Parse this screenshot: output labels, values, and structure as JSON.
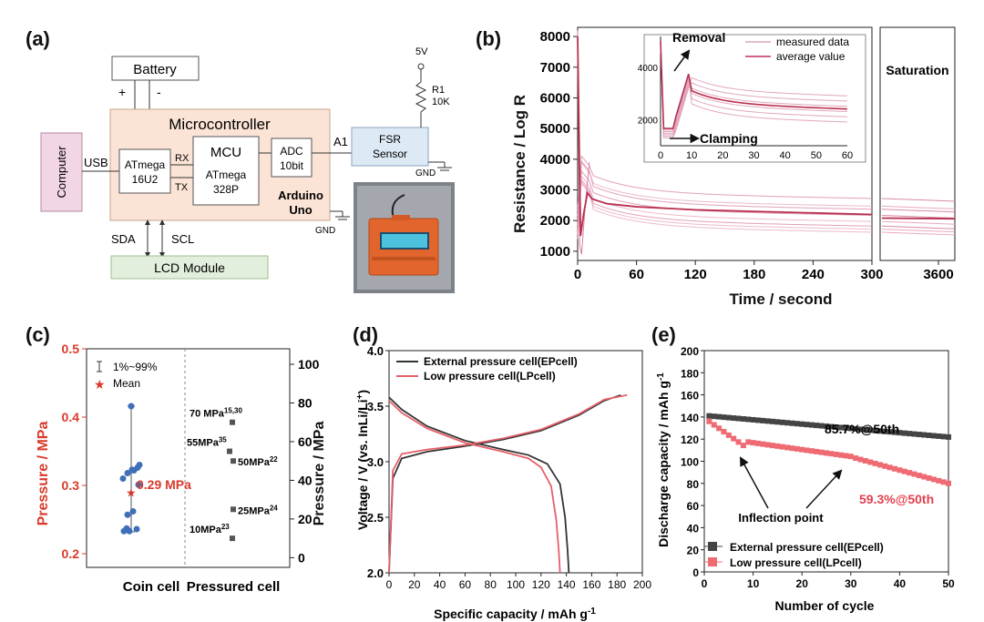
{
  "panels": {
    "a": {
      "label": "(a)",
      "battery": "Battery",
      "plus": "+",
      "minus": "-",
      "microcontroller": "Microcontroller",
      "computer": "Computer",
      "usb": "USB",
      "atmega16_l1": "ATmega",
      "atmega16_l2": "16U2",
      "rx": "RX",
      "tx": "TX",
      "mcu": "MCU",
      "atmega328_l1": "ATmega",
      "atmega328_l2": "328P",
      "adc_l1": "ADC",
      "adc_l2": "10bit",
      "arduino_l1": "Arduino",
      "arduino_l2": "Uno",
      "a1": "A1",
      "fsr_l1": "FSR",
      "fsr_l2": "Sensor",
      "v5": "5V",
      "r1": "R1",
      "r1_val": "10K",
      "gnd": "GND",
      "sda": "SDA",
      "scl": "SCL",
      "lcd": "LCD Module"
    },
    "b": {
      "label": "(b)",
      "inset_legend": [
        "measured data",
        "average value"
      ],
      "removal": "Removal",
      "clamping": "Clamping",
      "saturation": "Saturation"
    },
    "c": {
      "label": "(c)",
      "legend_range": "1%~99%",
      "legend_mean": "Mean",
      "mean_label": "0.29 MPa",
      "pressured": [
        {
          "label": "70 MPa",
          "ref": "15,30",
          "value": 70
        },
        {
          "label": "55MPa",
          "ref": "35",
          "value": 55
        },
        {
          "label": "50MPa",
          "ref": "22",
          "value": 50
        },
        {
          "label": "25MPa",
          "ref": "24",
          "value": 25
        },
        {
          "label": "10MPa",
          "ref": "23",
          "value": 10
        }
      ]
    },
    "d": {
      "label": "(d)"
    },
    "e": {
      "label": "(e)",
      "ep_annot": "85.7%@50th",
      "lp_annot": "59.3%@50th",
      "inflection": "Inflection point"
    }
  },
  "chart_data": [
    {
      "type": "line",
      "panel": "b",
      "xlabel": "Time / second",
      "ylabel": "Resistance / Log R",
      "xticks": [
        "0",
        "60",
        "120",
        "180",
        "240",
        "300",
        "3600"
      ],
      "ylim": [
        700,
        8300
      ],
      "yticks": [
        1000,
        2000,
        3000,
        4000,
        5000,
        6000,
        7000,
        8000
      ],
      "series": [
        {
          "name": "average value",
          "x": [
            0,
            3,
            6,
            10,
            15,
            30,
            60,
            120,
            180,
            240,
            300
          ],
          "y": [
            8000,
            1500,
            2200,
            2900,
            2700,
            2550,
            2450,
            2350,
            2300,
            2250,
            2200
          ]
        }
      ],
      "inset": {
        "xticks": [
          0,
          10,
          20,
          30,
          40,
          50,
          60
        ],
        "yticks": [
          2000,
          4000
        ],
        "legend": [
          "measured data",
          "average value"
        ]
      }
    },
    {
      "type": "scatter",
      "panel": "c",
      "ylabel": "Pressure / MPa",
      "ylabel_right": "Pressure / MPa",
      "categories": [
        "Coin cell",
        "Pressured cell"
      ],
      "ylim": [
        0.18,
        0.5
      ],
      "yticks": [
        0.2,
        0.3,
        0.4,
        0.5
      ],
      "ylim_right": [
        -5,
        108
      ],
      "yticks_right": [
        0,
        20,
        40,
        60,
        80,
        100
      ],
      "coin_points": [
        0.233,
        0.233,
        0.236,
        0.237,
        0.257,
        0.262,
        0.301,
        0.31,
        0.318,
        0.322,
        0.323,
        0.326,
        0.33
      ],
      "range_low": 0.232,
      "range_high": 0.416,
      "mean": 0.29
    },
    {
      "type": "line",
      "panel": "d",
      "xlabel": "Specific capacity / mAh g",
      "xlabel_sup": "-1",
      "ylabel": "Voltage / V (vs. InLi/Li",
      "ylabel_sup": "+",
      "ylabel_end": ")",
      "xlim": [
        0,
        200
      ],
      "xticks": [
        0,
        20,
        40,
        60,
        80,
        100,
        120,
        140,
        160,
        180,
        200
      ],
      "ylim": [
        2.0,
        4.0
      ],
      "yticks": [
        2.0,
        2.5,
        3.0,
        3.5,
        4.0
      ],
      "series": [
        {
          "name": "External pressure cell(EPcell)",
          "charge": {
            "x": [
              0,
              3,
              10,
              30,
              60,
              90,
              120,
              150,
              170,
              183
            ],
            "y": [
              2.0,
              2.85,
              3.03,
              3.09,
              3.14,
              3.2,
              3.28,
              3.42,
              3.55,
              3.6
            ]
          },
          "discharge": {
            "x": [
              0,
              10,
              30,
              60,
              90,
              110,
              125,
              135,
              139,
              141,
              142
            ],
            "y": [
              3.58,
              3.47,
              3.32,
              3.19,
              3.11,
              3.06,
              2.98,
              2.8,
              2.5,
              2.2,
              2.0
            ]
          }
        },
        {
          "name": "Low pressure cell(LPcell)",
          "charge": {
            "x": [
              0,
              3,
              10,
              30,
              60,
              90,
              120,
              150,
              170,
              188
            ],
            "y": [
              2.0,
              2.92,
              3.07,
              3.11,
              3.15,
              3.21,
              3.29,
              3.43,
              3.56,
              3.6
            ]
          },
          "discharge": {
            "x": [
              0,
              10,
              30,
              60,
              90,
              110,
              120,
              128,
              132,
              134,
              135
            ],
            "y": [
              3.55,
              3.44,
              3.3,
              3.17,
              3.09,
              3.03,
              2.95,
              2.78,
              2.48,
              2.2,
              2.0
            ]
          }
        }
      ]
    },
    {
      "type": "scatter",
      "panel": "e",
      "xlabel": "Number of cycle",
      "ylabel": "Discharge capacity / mAh g",
      "ylabel_sup": "-1",
      "xlim": [
        0,
        50
      ],
      "xticks": [
        0,
        10,
        20,
        30,
        40,
        50
      ],
      "ylim": [
        0,
        200
      ],
      "yticks": [
        0,
        20,
        40,
        60,
        80,
        100,
        120,
        140,
        160,
        180,
        200
      ],
      "series": [
        {
          "name": "External pressure cell(EPcell)",
          "start": 141,
          "end": 122
        },
        {
          "name": "Low pressure cell(LPcell)",
          "start": 136,
          "end": 80
        }
      ]
    }
  ]
}
